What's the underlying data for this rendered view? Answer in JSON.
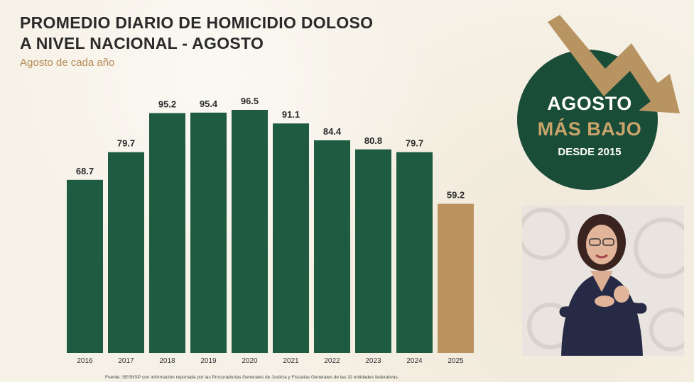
{
  "title_lines": [
    "PROMEDIO DIARIO DE HOMICIDIO DOLOSO",
    "A NIVEL NACIONAL - AGOSTO"
  ],
  "subtitle": "Agosto de cada año",
  "badge": {
    "line1": "AGOSTO",
    "line2": "MÁS BAJO",
    "line3": "DESDE 2015"
  },
  "source": "Fuente: SESNSP con información reportada por las Procuradurías Generales de Justicia y Fiscalías Generales de las 32 entidades federativas.",
  "colors": {
    "bar_main": "#1e5b40",
    "bar_highlight": "#bc935f",
    "badge_circle": "#1a4d38",
    "arrow": "#b99463"
  },
  "chart_data": {
    "type": "bar",
    "title": "PROMEDIO DIARIO DE HOMICIDIO DOLOSO A NIVEL NACIONAL - AGOSTO",
    "subtitle": "Agosto de cada año",
    "categories": [
      "2016",
      "2017",
      "2018",
      "2019",
      "2020",
      "2021",
      "2022",
      "2023",
      "2024",
      "2025"
    ],
    "values": [
      68.7,
      79.7,
      95.2,
      95.4,
      96.5,
      91.1,
      84.4,
      80.8,
      79.7,
      59.2
    ],
    "value_labels": [
      "68.7",
      "79.7",
      "95.2",
      "95.4",
      "96.5",
      "91.1",
      "84.4",
      "80.8",
      "79.7",
      "59.2"
    ],
    "highlight_category": "2025",
    "xlabel": "",
    "ylabel": "",
    "grid": false,
    "legend": "none"
  }
}
